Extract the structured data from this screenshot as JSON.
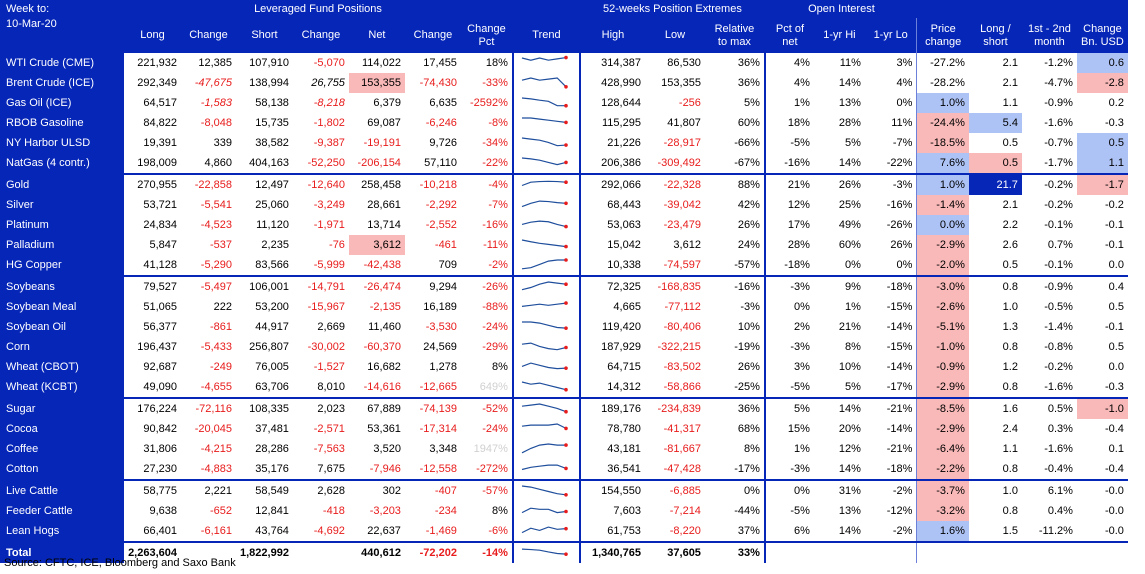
{
  "header": {
    "week_label": "Week to:",
    "date": "10-Mar-20",
    "group_lev": "Leveraged Fund Positions",
    "group_52w": "52-weeks Position Extremes",
    "group_oi": "Open Interest",
    "columns": [
      "Long",
      "Change",
      "Short",
      "Change",
      "Net",
      "Change",
      "Change Pct",
      "Trend",
      "High",
      "Low",
      "Relative to max",
      "Pct of net",
      "1-yr Hi",
      "1-yr Lo",
      "Price change",
      "Long / short",
      "1st - 2nd month",
      "Change Bn. USD"
    ]
  },
  "rows": [
    {
      "name": "WTI Crude (CME)",
      "cells": [
        "221,932",
        "12,385",
        "107,910",
        "-5,070",
        "114,022",
        "17,455",
        "18%",
        "314,387",
        "86,530",
        "36%",
        "4%",
        "11%",
        "3%",
        "-27.2%",
        "2.1",
        "-1.2%",
        "0.6"
      ],
      "trend": [
        5,
        4,
        5,
        4,
        4.6,
        5.2
      ]
    },
    {
      "name": "Brent Crude (ICE)",
      "cells": [
        "292,349",
        "-47,675",
        "138,994",
        "26,755",
        "153,355",
        "-74,430",
        "-33%",
        "428,990",
        "153,355",
        "36%",
        "4%",
        "14%",
        "4%",
        "-28.2%",
        "2.1",
        "-4.7%",
        "-2.8"
      ],
      "trend": [
        4,
        5,
        4,
        4.5,
        5,
        1
      ]
    },
    {
      "name": "Gas Oil (ICE)",
      "cells": [
        "64,517",
        "-1,583",
        "58,138",
        "-8,218",
        "6,379",
        "6,635",
        "-2592%",
        "128,644",
        "-256",
        "5%",
        "1%",
        "13%",
        "0%",
        "1.0%",
        "1.1",
        "-0.9%",
        "0.2"
      ],
      "trend": [
        5,
        4.6,
        4,
        3.5,
        1.5,
        1.5
      ]
    },
    {
      "name": "RBOB Gasoline",
      "cells": [
        "84,822",
        "-8,048",
        "15,735",
        "-1,802",
        "69,087",
        "-6,246",
        "-8%",
        "115,295",
        "41,807",
        "60%",
        "18%",
        "28%",
        "11%",
        "-24.4%",
        "5.4",
        "-1.6%",
        "-0.3"
      ],
      "trend": [
        5,
        5,
        4.5,
        4,
        3.5,
        3
      ]
    },
    {
      "name": "NY Harbor ULSD",
      "cells": [
        "19,391",
        "339",
        "38,582",
        "-9,387",
        "-19,191",
        "9,726",
        "-34%",
        "21,226",
        "-28,917",
        "-66%",
        "-5%",
        "5%",
        "-7%",
        "-18.5%",
        "0.5",
        "-0.7%",
        "0.5"
      ],
      "trend": [
        5,
        4.5,
        4,
        3,
        1.5,
        1.8
      ]
    },
    {
      "name": "NatGas (4 contr.)",
      "cells": [
        "198,009",
        "4,860",
        "404,163",
        "-52,250",
        "-206,154",
        "57,110",
        "-22%",
        "206,386",
        "-309,492",
        "-67%",
        "-16%",
        "14%",
        "-22%",
        "7.6%",
        "0.5",
        "-1.7%",
        "1.1"
      ],
      "trend": [
        5,
        4.6,
        4,
        3,
        2,
        3
      ]
    },
    {
      "name": "Gold",
      "cells": [
        "270,955",
        "-22,858",
        "12,497",
        "-12,640",
        "258,458",
        "-10,218",
        "-4%",
        "292,066",
        "-22,328",
        "88%",
        "21%",
        "26%",
        "-3%",
        "1.0%",
        "21.7",
        "-0.2%",
        "-1.7"
      ],
      "trend": [
        2.5,
        4,
        4.3,
        4.4,
        4.3,
        4
      ]
    },
    {
      "name": "Silver",
      "cells": [
        "53,721",
        "-5,541",
        "25,060",
        "-3,249",
        "28,661",
        "-2,292",
        "-7%",
        "68,443",
        "-39,042",
        "42%",
        "12%",
        "25%",
        "-16%",
        "-1.4%",
        "2.1",
        "-0.2%",
        "-0.2"
      ],
      "trend": [
        2,
        3.5,
        4.5,
        4.3,
        3.8,
        3.5
      ]
    },
    {
      "name": "Platinum",
      "cells": [
        "24,834",
        "-4,523",
        "11,120",
        "-1,971",
        "13,714",
        "-2,552",
        "-16%",
        "53,063",
        "-23,479",
        "26%",
        "17%",
        "49%",
        "-26%",
        "0.0%",
        "2.2",
        "-0.1%",
        "-0.1"
      ],
      "trend": [
        3,
        4,
        4.5,
        4.2,
        3,
        2
      ]
    },
    {
      "name": "Palladium",
      "cells": [
        "5,847",
        "-537",
        "2,235",
        "-76",
        "3,612",
        "-461",
        "-11%",
        "15,042",
        "3,612",
        "24%",
        "28%",
        "60%",
        "26%",
        "-2.9%",
        "2.6",
        "0.7%",
        "-0.1"
      ],
      "trend": [
        5,
        4.2,
        3.5,
        3,
        2.5,
        2
      ]
    },
    {
      "name": "HG Copper",
      "cells": [
        "41,128",
        "-5,290",
        "83,566",
        "-5,999",
        "-42,438",
        "709",
        "-2%",
        "10,338",
        "-74,597",
        "-57%",
        "-18%",
        "0%",
        "0%",
        "-2.0%",
        "0.5",
        "-0.1%",
        "0.0"
      ],
      "trend": [
        1,
        1.5,
        3,
        4.5,
        5,
        5
      ]
    },
    {
      "name": "Soybeans",
      "cells": [
        "79,527",
        "-5,497",
        "106,001",
        "-14,791",
        "-26,474",
        "9,294",
        "-26%",
        "72,325",
        "-168,835",
        "-16%",
        "-3%",
        "9%",
        "-18%",
        "-3.0%",
        "0.8",
        "-0.9%",
        "0.4"
      ],
      "trend": [
        1.5,
        2.5,
        4,
        5,
        4.5,
        4
      ]
    },
    {
      "name": "Soybean Meal",
      "cells": [
        "51,065",
        "222",
        "53,200",
        "-15,967",
        "-2,135",
        "16,189",
        "-88%",
        "4,665",
        "-77,112",
        "-3%",
        "0%",
        "1%",
        "-15%",
        "-2.6%",
        "1.0",
        "-0.5%",
        "0.5"
      ],
      "trend": [
        3,
        3.5,
        4,
        3.5,
        4,
        4.5
      ]
    },
    {
      "name": "Soybean Oil",
      "cells": [
        "56,377",
        "-861",
        "44,917",
        "2,669",
        "11,460",
        "-3,530",
        "-24%",
        "119,420",
        "-80,406",
        "10%",
        "2%",
        "21%",
        "-14%",
        "-5.1%",
        "1.3",
        "-1.4%",
        "-0.1"
      ],
      "trend": [
        5,
        5,
        4.5,
        3.5,
        2.5,
        2.2
      ]
    },
    {
      "name": "Corn",
      "cells": [
        "196,437",
        "-5,433",
        "256,807",
        "-30,002",
        "-60,370",
        "24,569",
        "-29%",
        "187,929",
        "-322,215",
        "-19%",
        "-3%",
        "8%",
        "-15%",
        "-1.0%",
        "0.8",
        "-0.8%",
        "0.5"
      ],
      "trend": [
        4,
        4.5,
        3,
        2,
        1.5,
        2.5
      ]
    },
    {
      "name": "Wheat (CBOT)",
      "cells": [
        "92,687",
        "-249",
        "76,005",
        "-1,527",
        "16,682",
        "1,278",
        "8%",
        "64,715",
        "-83,502",
        "26%",
        "3%",
        "10%",
        "-14%",
        "-0.9%",
        "1.2",
        "-0.2%",
        "0.0"
      ],
      "trend": [
        3,
        4.5,
        3.5,
        2.5,
        2,
        2.2
      ]
    },
    {
      "name": "Wheat (KCBT)",
      "cells": [
        "49,090",
        "-4,655",
        "63,706",
        "8,010",
        "-14,616",
        "-12,665",
        "649%",
        "14,312",
        "-58,866",
        "-25%",
        "-5%",
        "5%",
        "-17%",
        "-2.9%",
        "0.8",
        "-1.6%",
        "-0.3"
      ],
      "trend": [
        5,
        4,
        4.5,
        3.5,
        2.5,
        1.5
      ]
    },
    {
      "name": "Sugar",
      "cells": [
        "176,224",
        "-72,116",
        "108,335",
        "2,023",
        "67,889",
        "-74,139",
        "-52%",
        "189,176",
        "-234,839",
        "36%",
        "5%",
        "14%",
        "-21%",
        "-8.5%",
        "1.6",
        "0.5%",
        "-1.0"
      ],
      "trend": [
        4,
        4.5,
        5,
        4,
        3,
        1.5
      ]
    },
    {
      "name": "Cocoa",
      "cells": [
        "90,842",
        "-20,045",
        "37,481",
        "-2,571",
        "53,361",
        "-17,314",
        "-24%",
        "78,780",
        "-41,317",
        "68%",
        "15%",
        "20%",
        "-14%",
        "-2.9%",
        "2.4",
        "0.3%",
        "-0.4"
      ],
      "trend": [
        4,
        4.5,
        4.5,
        4.5,
        5,
        3
      ]
    },
    {
      "name": "Coffee",
      "cells": [
        "31,806",
        "-4,215",
        "28,286",
        "-7,563",
        "3,520",
        "3,348",
        "1947%",
        "43,181",
        "-81,667",
        "8%",
        "1%",
        "12%",
        "-21%",
        "-6.4%",
        "1.1",
        "-1.6%",
        "0.1"
      ],
      "trend": [
        1,
        3,
        4.5,
        5,
        4.5,
        4.5
      ]
    },
    {
      "name": "Cotton",
      "cells": [
        "27,230",
        "-4,883",
        "35,176",
        "7,675",
        "-7,946",
        "-12,558",
        "-272%",
        "36,541",
        "-47,428",
        "-17%",
        "-3%",
        "14%",
        "-18%",
        "-2.2%",
        "0.8",
        "-0.4%",
        "-0.4"
      ],
      "trend": [
        2.5,
        3.5,
        4,
        4.5,
        4.5,
        3
      ]
    },
    {
      "name": "Live Cattle",
      "cells": [
        "58,775",
        "2,221",
        "58,549",
        "2,628",
        "302",
        "-407",
        "-57%",
        "154,550",
        "-6,885",
        "0%",
        "0%",
        "31%",
        "-2%",
        "-3.7%",
        "1.0",
        "6.1%",
        "-0.0"
      ],
      "trend": [
        5,
        4.5,
        3.5,
        2.5,
        1.5,
        1
      ]
    },
    {
      "name": "Feeder Cattle",
      "cells": [
        "9,638",
        "-652",
        "12,841",
        "-418",
        "-3,203",
        "-234",
        "8%",
        "7,603",
        "-7,214",
        "-44%",
        "-5%",
        "13%",
        "-12%",
        "-3.2%",
        "0.8",
        "0.4%",
        "-0.0"
      ],
      "trend": [
        2,
        4,
        3.5,
        3.5,
        2,
        2.5
      ]
    },
    {
      "name": "Lean Hogs",
      "cells": [
        "66,401",
        "-6,161",
        "43,764",
        "-4,692",
        "22,637",
        "-1,469",
        "-6%",
        "61,753",
        "-8,220",
        "37%",
        "6%",
        "14%",
        "-2%",
        "1.6%",
        "1.5",
        "-11.2%",
        "-0.0"
      ],
      "trend": [
        2,
        4,
        3,
        4.5,
        3.5,
        3.8
      ]
    }
  ],
  "total": {
    "name": "Total",
    "cells": [
      "2,263,604",
      "",
      "1,822,992",
      "",
      "440,612",
      "-72,202",
      "-14%",
      "1,340,765",
      "37,605",
      "33%"
    ],
    "trend": [
      4.5,
      4.3,
      4,
      3.2,
      2.5,
      2.2
    ]
  },
  "source": "Source: CFTC, ICE, Bloomberg and Saxo Bank",
  "colors": {
    "header": "#0626b8",
    "negative": "#e81c1c",
    "pink": "#f9b9b9",
    "blue": "#aec3f5",
    "grey": "#d0d0d0"
  }
}
